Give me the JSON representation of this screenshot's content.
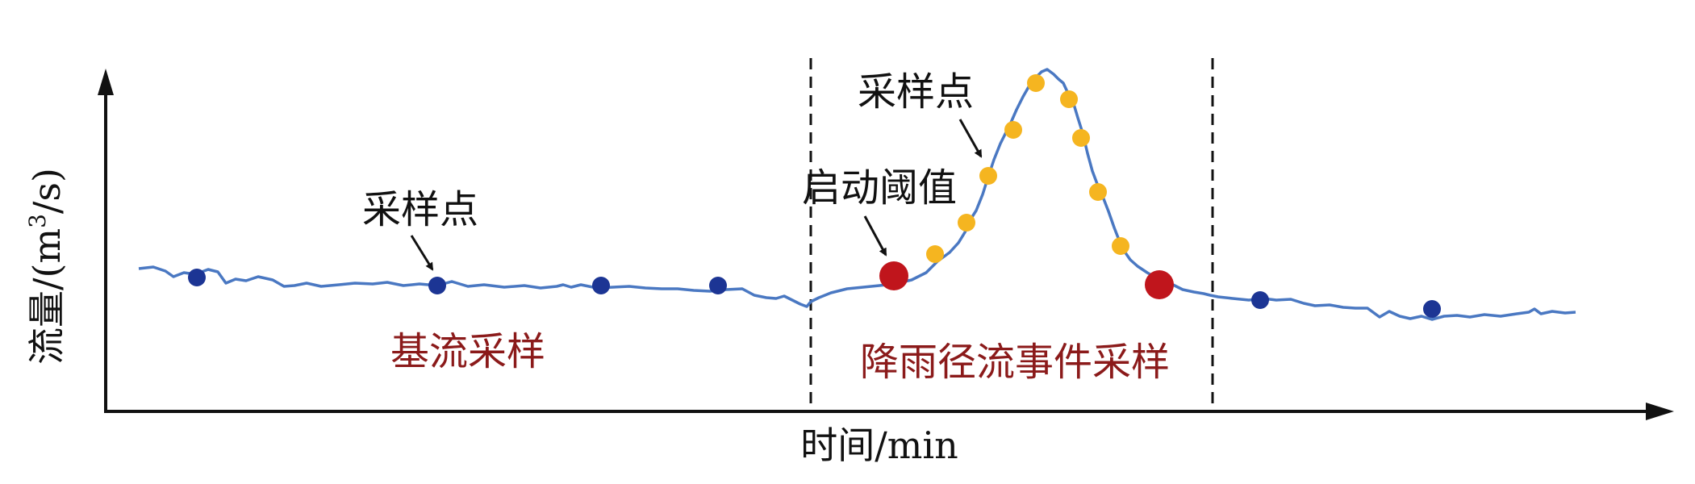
{
  "axes": {
    "y_label": "流量/(m",
    "y_label_sup": "3",
    "y_label_end": "/s)",
    "x_label": "时间/min"
  },
  "annotations": {
    "baseflow_sample_point": "采样点",
    "event_sample_point": "采样点",
    "start_threshold": "启动阈值"
  },
  "regions": {
    "baseflow_sampling": "基流采样",
    "rainfall_runoff_sampling": "降雨径流事件采样"
  },
  "colors": {
    "curve": "#4a78c2",
    "baseflow_point": "#1c3594",
    "event_point": "#f5b520",
    "threshold_point": "#c0151c",
    "region_label": "#8b1a1a",
    "axis": "#111111"
  }
}
